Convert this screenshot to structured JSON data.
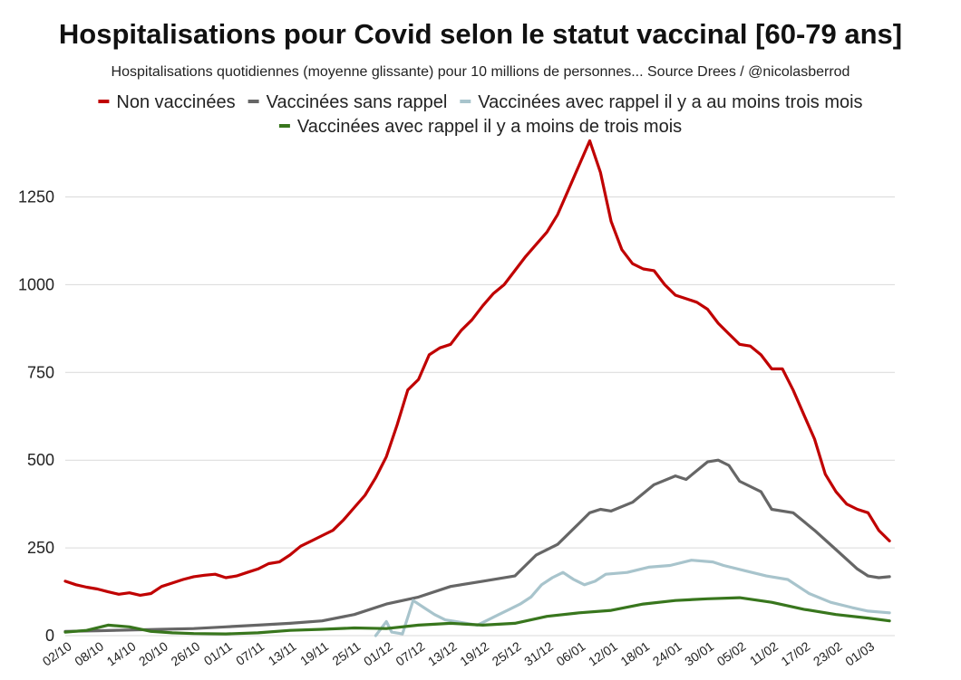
{
  "chart_data": {
    "type": "line",
    "title": "Hospitalisations pour Covid selon le statut vaccinal [60-79 ans]",
    "subtitle": "Hospitalisations quotidiennes (moyenne glissante) pour 10 millions de personnes... Source Drees / @nicolasberrod",
    "legend_position": "top",
    "grid": true,
    "ylim": [
      0,
      1450
    ],
    "yticks": [
      0,
      250,
      500,
      750,
      1000,
      1250
    ],
    "xlim": [
      "2021-10-02",
      "2022-03-06"
    ],
    "xticks": [
      {
        "date": "2021-10-02",
        "label": "02/10"
      },
      {
        "date": "2021-10-08",
        "label": "08/10"
      },
      {
        "date": "2021-10-14",
        "label": "14/10"
      },
      {
        "date": "2021-10-20",
        "label": "20/10"
      },
      {
        "date": "2021-10-26",
        "label": "26/10"
      },
      {
        "date": "2021-11-01",
        "label": "01/11"
      },
      {
        "date": "2021-11-07",
        "label": "07/11"
      },
      {
        "date": "2021-11-13",
        "label": "13/11"
      },
      {
        "date": "2021-11-19",
        "label": "19/11"
      },
      {
        "date": "2021-11-25",
        "label": "25/11"
      },
      {
        "date": "2021-12-01",
        "label": "01/12"
      },
      {
        "date": "2021-12-07",
        "label": "07/12"
      },
      {
        "date": "2021-12-13",
        "label": "13/12"
      },
      {
        "date": "2021-12-19",
        "label": "19/12"
      },
      {
        "date": "2021-12-25",
        "label": "25/12"
      },
      {
        "date": "2021-12-31",
        "label": "31/12"
      },
      {
        "date": "2022-01-06",
        "label": "06/01"
      },
      {
        "date": "2022-01-12",
        "label": "12/01"
      },
      {
        "date": "2022-01-18",
        "label": "18/01"
      },
      {
        "date": "2022-01-24",
        "label": "24/01"
      },
      {
        "date": "2022-01-30",
        "label": "30/01"
      },
      {
        "date": "2022-02-05",
        "label": "05/02"
      },
      {
        "date": "2022-02-11",
        "label": "11/02"
      },
      {
        "date": "2022-02-17",
        "label": "17/02"
      },
      {
        "date": "2022-02-23",
        "label": "23/02"
      },
      {
        "date": "2022-03-01",
        "label": "01/03"
      }
    ],
    "series": [
      {
        "name": "Non vaccinées",
        "color": "#c00000",
        "points": [
          [
            "2021-10-02",
            155
          ],
          [
            "2021-10-04",
            145
          ],
          [
            "2021-10-06",
            138
          ],
          [
            "2021-10-08",
            133
          ],
          [
            "2021-10-10",
            125
          ],
          [
            "2021-10-12",
            118
          ],
          [
            "2021-10-14",
            122
          ],
          [
            "2021-10-16",
            115
          ],
          [
            "2021-10-18",
            120
          ],
          [
            "2021-10-20",
            140
          ],
          [
            "2021-10-22",
            150
          ],
          [
            "2021-10-24",
            160
          ],
          [
            "2021-10-26",
            168
          ],
          [
            "2021-10-28",
            172
          ],
          [
            "2021-10-30",
            175
          ],
          [
            "2021-11-01",
            165
          ],
          [
            "2021-11-03",
            170
          ],
          [
            "2021-11-05",
            180
          ],
          [
            "2021-11-07",
            190
          ],
          [
            "2021-11-09",
            205
          ],
          [
            "2021-11-11",
            210
          ],
          [
            "2021-11-13",
            230
          ],
          [
            "2021-11-15",
            255
          ],
          [
            "2021-11-17",
            270
          ],
          [
            "2021-11-19",
            285
          ],
          [
            "2021-11-21",
            300
          ],
          [
            "2021-11-23",
            330
          ],
          [
            "2021-11-25",
            365
          ],
          [
            "2021-11-27",
            400
          ],
          [
            "2021-11-29",
            450
          ],
          [
            "2021-12-01",
            510
          ],
          [
            "2021-12-03",
            600
          ],
          [
            "2021-12-05",
            700
          ],
          [
            "2021-12-07",
            730
          ],
          [
            "2021-12-09",
            800
          ],
          [
            "2021-12-11",
            820
          ],
          [
            "2021-12-13",
            830
          ],
          [
            "2021-12-15",
            870
          ],
          [
            "2021-12-17",
            900
          ],
          [
            "2021-12-19",
            940
          ],
          [
            "2021-12-21",
            975
          ],
          [
            "2021-12-23",
            1000
          ],
          [
            "2021-12-25",
            1040
          ],
          [
            "2021-12-27",
            1080
          ],
          [
            "2021-12-29",
            1115
          ],
          [
            "2021-12-31",
            1150
          ],
          [
            "2022-01-02",
            1200
          ],
          [
            "2022-01-04",
            1270
          ],
          [
            "2022-01-06",
            1340
          ],
          [
            "2022-01-08",
            1410
          ],
          [
            "2022-01-10",
            1320
          ],
          [
            "2022-01-12",
            1180
          ],
          [
            "2022-01-14",
            1100
          ],
          [
            "2022-01-16",
            1060
          ],
          [
            "2022-01-18",
            1045
          ],
          [
            "2022-01-20",
            1040
          ],
          [
            "2022-01-22",
            1000
          ],
          [
            "2022-01-24",
            970
          ],
          [
            "2022-01-26",
            960
          ],
          [
            "2022-01-28",
            950
          ],
          [
            "2022-01-30",
            930
          ],
          [
            "2022-02-01",
            890
          ],
          [
            "2022-02-03",
            860
          ],
          [
            "2022-02-05",
            830
          ],
          [
            "2022-02-07",
            825
          ],
          [
            "2022-02-09",
            800
          ],
          [
            "2022-02-11",
            760
          ],
          [
            "2022-02-13",
            760
          ],
          [
            "2022-02-15",
            700
          ],
          [
            "2022-02-17",
            630
          ],
          [
            "2022-02-19",
            560
          ],
          [
            "2022-02-21",
            460
          ],
          [
            "2022-02-23",
            410
          ],
          [
            "2022-02-25",
            375
          ],
          [
            "2022-02-27",
            360
          ],
          [
            "2022-03-01",
            350
          ],
          [
            "2022-03-03",
            300
          ],
          [
            "2022-03-05",
            270
          ]
        ]
      },
      {
        "name": "Vaccinées sans rappel",
        "color": "#666666",
        "points": [
          [
            "2021-10-02",
            12
          ],
          [
            "2021-10-08",
            14
          ],
          [
            "2021-10-14",
            16
          ],
          [
            "2021-10-20",
            18
          ],
          [
            "2021-10-26",
            20
          ],
          [
            "2021-11-01",
            25
          ],
          [
            "2021-11-07",
            30
          ],
          [
            "2021-11-13",
            35
          ],
          [
            "2021-11-19",
            42
          ],
          [
            "2021-11-25",
            60
          ],
          [
            "2021-12-01",
            90
          ],
          [
            "2021-12-07",
            110
          ],
          [
            "2021-12-13",
            140
          ],
          [
            "2021-12-19",
            155
          ],
          [
            "2021-12-25",
            170
          ],
          [
            "2021-12-29",
            230
          ],
          [
            "2022-01-02",
            260
          ],
          [
            "2022-01-06",
            320
          ],
          [
            "2022-01-08",
            350
          ],
          [
            "2022-01-10",
            360
          ],
          [
            "2022-01-12",
            355
          ],
          [
            "2022-01-16",
            380
          ],
          [
            "2022-01-20",
            430
          ],
          [
            "2022-01-24",
            455
          ],
          [
            "2022-01-26",
            445
          ],
          [
            "2022-01-30",
            495
          ],
          [
            "2022-02-01",
            500
          ],
          [
            "2022-02-03",
            485
          ],
          [
            "2022-02-05",
            440
          ],
          [
            "2022-02-09",
            410
          ],
          [
            "2022-02-11",
            360
          ],
          [
            "2022-02-15",
            350
          ],
          [
            "2022-02-19",
            300
          ],
          [
            "2022-02-23",
            245
          ],
          [
            "2022-02-27",
            190
          ],
          [
            "2022-03-01",
            170
          ],
          [
            "2022-03-03",
            165
          ],
          [
            "2022-03-05",
            168
          ]
        ]
      },
      {
        "name": "Vaccinées avec rappel il y a au moins trois mois",
        "color": "#a8c4cc",
        "points": [
          [
            "2021-11-29",
            0
          ],
          [
            "2021-12-01",
            40
          ],
          [
            "2021-12-02",
            10
          ],
          [
            "2021-12-04",
            5
          ],
          [
            "2021-12-06",
            100
          ],
          [
            "2021-12-08",
            80
          ],
          [
            "2021-12-10",
            60
          ],
          [
            "2021-12-12",
            45
          ],
          [
            "2021-12-14",
            40
          ],
          [
            "2021-12-16",
            35
          ],
          [
            "2021-12-18",
            30
          ],
          [
            "2021-12-20",
            45
          ],
          [
            "2021-12-22",
            60
          ],
          [
            "2021-12-24",
            75
          ],
          [
            "2021-12-26",
            90
          ],
          [
            "2021-12-28",
            110
          ],
          [
            "2021-12-30",
            145
          ],
          [
            "2022-01-01",
            165
          ],
          [
            "2022-01-03",
            180
          ],
          [
            "2022-01-05",
            160
          ],
          [
            "2022-01-07",
            145
          ],
          [
            "2022-01-09",
            155
          ],
          [
            "2022-01-11",
            175
          ],
          [
            "2022-01-15",
            180
          ],
          [
            "2022-01-19",
            195
          ],
          [
            "2022-01-23",
            200
          ],
          [
            "2022-01-27",
            215
          ],
          [
            "2022-01-31",
            210
          ],
          [
            "2022-02-02",
            200
          ],
          [
            "2022-02-06",
            185
          ],
          [
            "2022-02-10",
            170
          ],
          [
            "2022-02-14",
            160
          ],
          [
            "2022-02-18",
            120
          ],
          [
            "2022-02-22",
            95
          ],
          [
            "2022-02-26",
            80
          ],
          [
            "2022-03-01",
            70
          ],
          [
            "2022-03-05",
            65
          ]
        ]
      },
      {
        "name": "Vaccinées avec rappel il y a moins de trois mois",
        "color": "#38761d",
        "points": [
          [
            "2021-10-02",
            10
          ],
          [
            "2021-10-06",
            15
          ],
          [
            "2021-10-10",
            30
          ],
          [
            "2021-10-14",
            25
          ],
          [
            "2021-10-18",
            12
          ],
          [
            "2021-10-22",
            8
          ],
          [
            "2021-10-26",
            6
          ],
          [
            "2021-11-01",
            5
          ],
          [
            "2021-11-07",
            8
          ],
          [
            "2021-11-13",
            15
          ],
          [
            "2021-11-19",
            18
          ],
          [
            "2021-11-25",
            22
          ],
          [
            "2021-12-01",
            20
          ],
          [
            "2021-12-07",
            30
          ],
          [
            "2021-12-13",
            35
          ],
          [
            "2021-12-19",
            30
          ],
          [
            "2021-12-25",
            35
          ],
          [
            "2021-12-31",
            55
          ],
          [
            "2022-01-06",
            65
          ],
          [
            "2022-01-12",
            72
          ],
          [
            "2022-01-18",
            90
          ],
          [
            "2022-01-24",
            100
          ],
          [
            "2022-01-30",
            105
          ],
          [
            "2022-02-05",
            108
          ],
          [
            "2022-02-11",
            95
          ],
          [
            "2022-02-17",
            75
          ],
          [
            "2022-02-23",
            60
          ],
          [
            "2022-03-01",
            50
          ],
          [
            "2022-03-05",
            42
          ]
        ]
      }
    ]
  }
}
